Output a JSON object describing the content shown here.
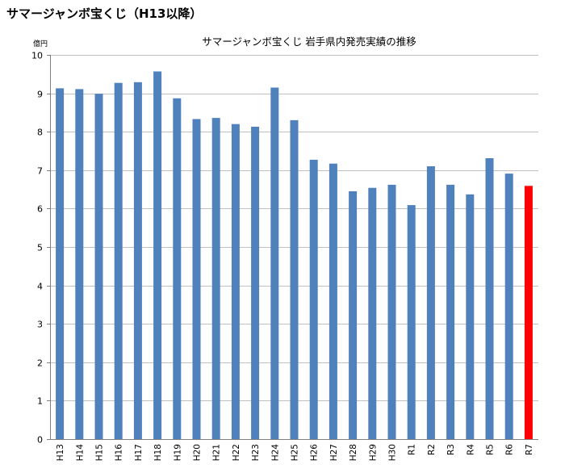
{
  "page": {
    "heading": "サマージャンボ宝くじ（H13以降）"
  },
  "chart_data": {
    "type": "bar",
    "title": "サマージャンボ宝くじ 岩手県内発売実績の推移",
    "ylabel": "億円",
    "xlabel": "",
    "ylim": [
      0,
      10
    ],
    "yticks": [
      0,
      1,
      2,
      3,
      4,
      5,
      6,
      7,
      8,
      9,
      10
    ],
    "grid": true,
    "categories": [
      "H13",
      "H14",
      "H15",
      "H16",
      "H17",
      "H18",
      "H19",
      "H20",
      "H21",
      "H22",
      "H23",
      "H24",
      "H25",
      "H26",
      "H27",
      "H28",
      "H29",
      "H30",
      "R1",
      "R2",
      "R3",
      "R4",
      "R5",
      "R6",
      "R7"
    ],
    "values": [
      9.13,
      9.11,
      8.99,
      9.27,
      9.29,
      9.57,
      8.87,
      8.33,
      8.36,
      8.2,
      8.13,
      9.15,
      8.3,
      7.27,
      7.17,
      6.45,
      6.54,
      6.62,
      6.09,
      7.1,
      6.62,
      6.37,
      7.31,
      6.91,
      6.59
    ],
    "colors": {
      "bar": "#4f81bd",
      "highlight": "#ff0000",
      "grid": "#c0c0c0",
      "axis": "#808080"
    },
    "highlight_category": "R7"
  }
}
